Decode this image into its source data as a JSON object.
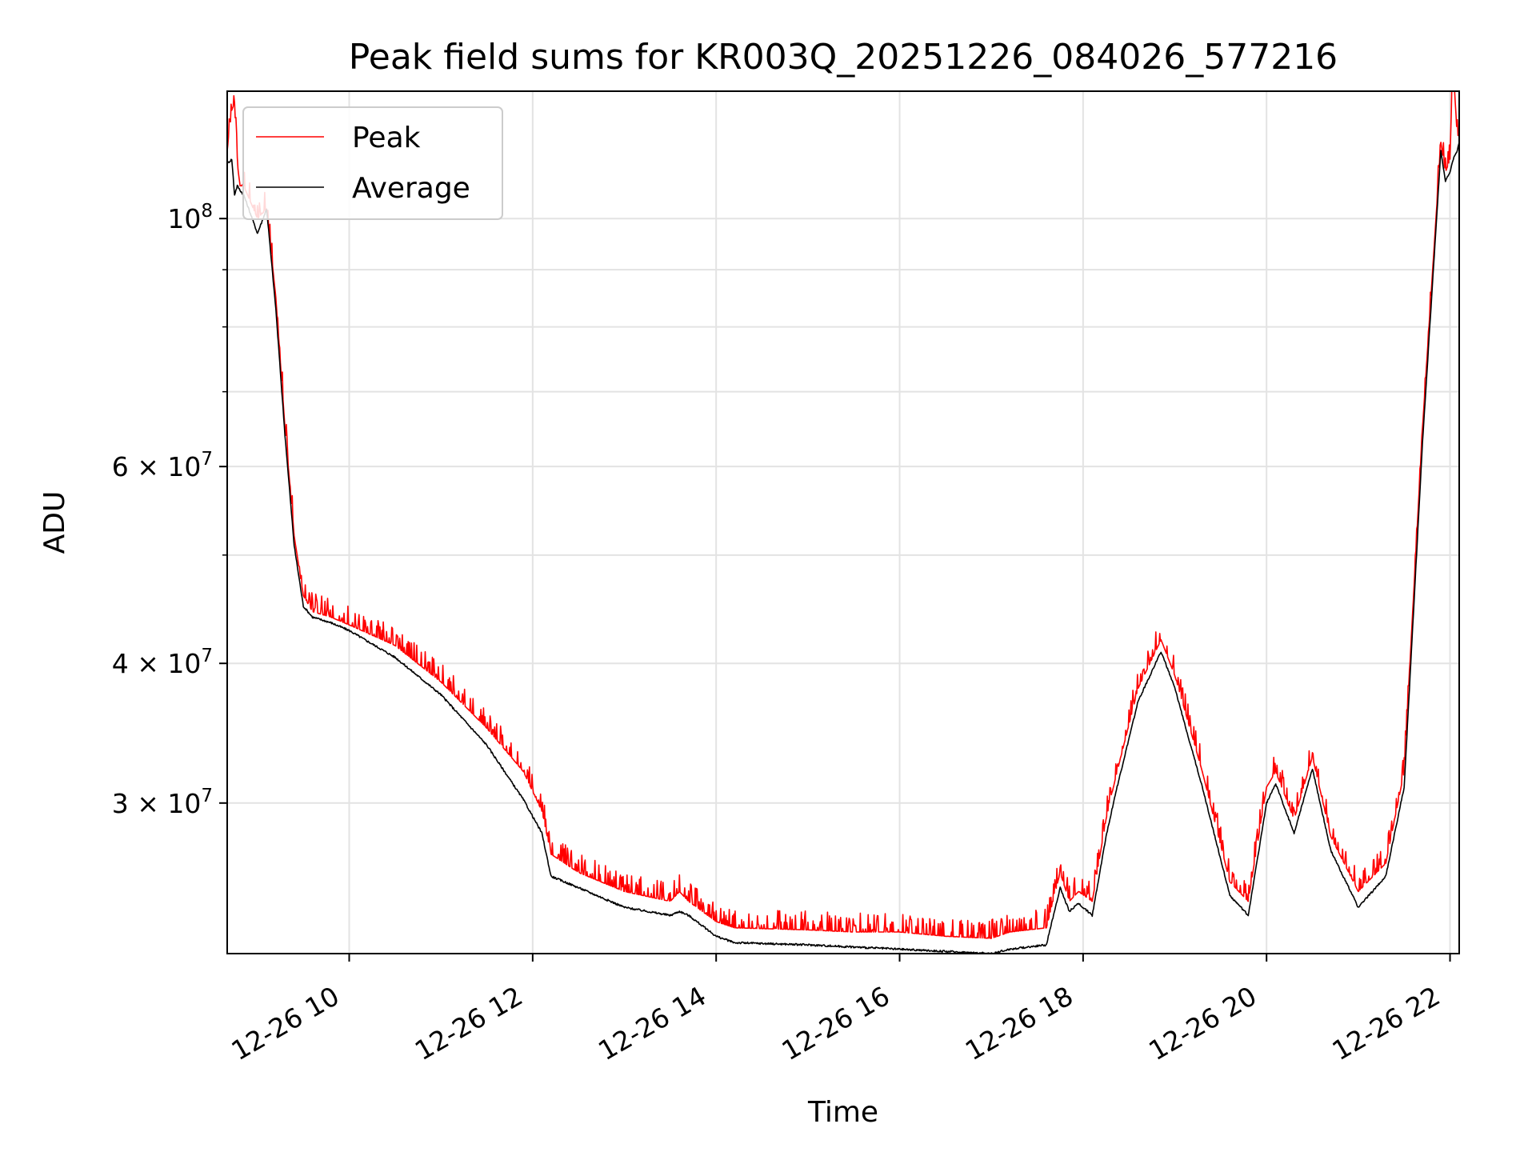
{
  "chart_data": {
    "type": "line",
    "title": "Peak field sums for KR003Q_20251226_084026_577216",
    "xlabel": "Time",
    "ylabel": "ADU",
    "yscale": "log",
    "xlim": [
      8.67,
      22.1
    ],
    "ylim": [
      22000000.0,
      130000000.0
    ],
    "grid": true,
    "legend_location": "upper-left",
    "x_tick_values": [
      10,
      12,
      14,
      16,
      18,
      20,
      22
    ],
    "x_tick_labels": [
      "12-26 10",
      "12-26 12",
      "12-26 14",
      "12-26 16",
      "12-26 18",
      "12-26 20",
      "12-26 22"
    ],
    "y_tick_values": [
      100000000.0,
      60000000.0,
      40000000.0,
      30000000.0
    ],
    "y_tick_labels": [
      {
        "mantissa": "",
        "base": "10",
        "exp": "8"
      },
      {
        "mantissa": "6 × ",
        "base": "10",
        "exp": "7"
      },
      {
        "mantissa": "4 × ",
        "base": "10",
        "exp": "7"
      },
      {
        "mantissa": "3 × ",
        "base": "10",
        "exp": "7"
      }
    ],
    "y_minor_values": [
      90000000.0,
      80000000.0,
      70000000.0,
      50000000.0
    ],
    "series": [
      {
        "name": "Peak",
        "color": "#ff0000",
        "x": [
          8.67,
          8.72,
          8.75,
          8.78,
          8.81,
          8.85,
          9.0,
          9.1,
          9.2,
          9.3,
          9.4,
          9.5,
          9.6,
          9.8,
          10.0,
          10.5,
          11.0,
          11.5,
          11.9,
          12.1,
          12.2,
          12.5,
          13.0,
          13.5,
          13.6,
          13.7,
          14.0,
          14.2,
          15.0,
          15.5,
          16.0,
          16.5,
          17.0,
          17.2,
          17.6,
          17.75,
          17.85,
          17.95,
          18.1,
          18.25,
          18.35,
          18.6,
          18.85,
          19.0,
          19.3,
          19.6,
          19.8,
          20.0,
          20.1,
          20.3,
          20.5,
          20.7,
          21.0,
          21.3,
          21.5,
          21.7,
          21.9,
          21.95,
          22.0,
          22.02,
          22.05,
          22.08,
          22.1
        ],
        "y": [
          115000000.0,
          125000000.0,
          127000000.0,
          112000000.0,
          107000000.0,
          107000000.0,
          100000000.0,
          102000000.0,
          85000000.0,
          65000000.0,
          52000000.0,
          46000000.0,
          44500000.0,
          44000000.0,
          43300000.0,
          41500000.0,
          38500000.0,
          35000000.0,
          32000000.0,
          29500000.0,
          27000000.0,
          26000000.0,
          25000000.0,
          24500000.0,
          25000000.0,
          24500000.0,
          23500000.0,
          23200000.0,
          23100000.0,
          23000000.0,
          23000000.0,
          22800000.0,
          22700000.0,
          23000000.0,
          23200000.0,
          26000000.0,
          24500000.0,
          25000000.0,
          24500000.0,
          29000000.0,
          31500000.0,
          38000000.0,
          42000000.0,
          39000000.0,
          32000000.0,
          25500000.0,
          24500000.0,
          31000000.0,
          32000000.0,
          29000000.0,
          33000000.0,
          28000000.0,
          25000000.0,
          26500000.0,
          32000000.0,
          65000000.0,
          117000000.0,
          110000000.0,
          113000000.0,
          130000000.0,
          130000000.0,
          118000000.0,
          120000000.0
        ]
      },
      {
        "name": "Average",
        "color": "#000000",
        "x": [
          8.67,
          8.72,
          8.75,
          8.78,
          8.81,
          8.85,
          9.0,
          9.1,
          9.2,
          9.3,
          9.4,
          9.5,
          9.6,
          9.8,
          10.0,
          10.5,
          11.0,
          11.5,
          11.9,
          12.1,
          12.2,
          12.5,
          13.0,
          13.5,
          13.6,
          13.7,
          14.0,
          14.2,
          15.0,
          15.5,
          16.0,
          16.5,
          17.0,
          17.2,
          17.6,
          17.75,
          17.85,
          17.95,
          18.1,
          18.25,
          18.35,
          18.6,
          18.85,
          19.0,
          19.3,
          19.6,
          19.8,
          20.0,
          20.1,
          20.3,
          20.5,
          20.7,
          21.0,
          21.3,
          21.5,
          21.7,
          21.9,
          21.95,
          22.0,
          22.02,
          22.05,
          22.08,
          22.1
        ],
        "y": [
          112000000.0,
          113000000.0,
          105000000.0,
          107000000.0,
          106000000.0,
          105000000.0,
          97000000.0,
          102000000.0,
          83000000.0,
          64000000.0,
          51000000.0,
          45000000.0,
          44000000.0,
          43500000.0,
          42800000.0,
          40500000.0,
          37500000.0,
          33800000.0,
          30200000.0,
          28200000.0,
          25800000.0,
          25200000.0,
          24200000.0,
          23800000.0,
          24000000.0,
          23800000.0,
          22800000.0,
          22500000.0,
          22400000.0,
          22300000.0,
          22200000.0,
          22100000.0,
          22000000.0,
          22200000.0,
          22400000.0,
          25200000.0,
          24000000.0,
          24400000.0,
          23800000.0,
          28000000.0,
          30500000.0,
          37000000.0,
          41000000.0,
          38000000.0,
          31000000.0,
          24800000.0,
          23800000.0,
          30000000.0,
          31200000.0,
          28200000.0,
          32200000.0,
          27200000.0,
          24200000.0,
          25800000.0,
          31000000.0,
          63000000.0,
          115000000.0,
          108000000.0,
          110000000.0,
          112000000.0,
          114000000.0,
          115000000.0,
          117000000.0
        ]
      }
    ]
  }
}
